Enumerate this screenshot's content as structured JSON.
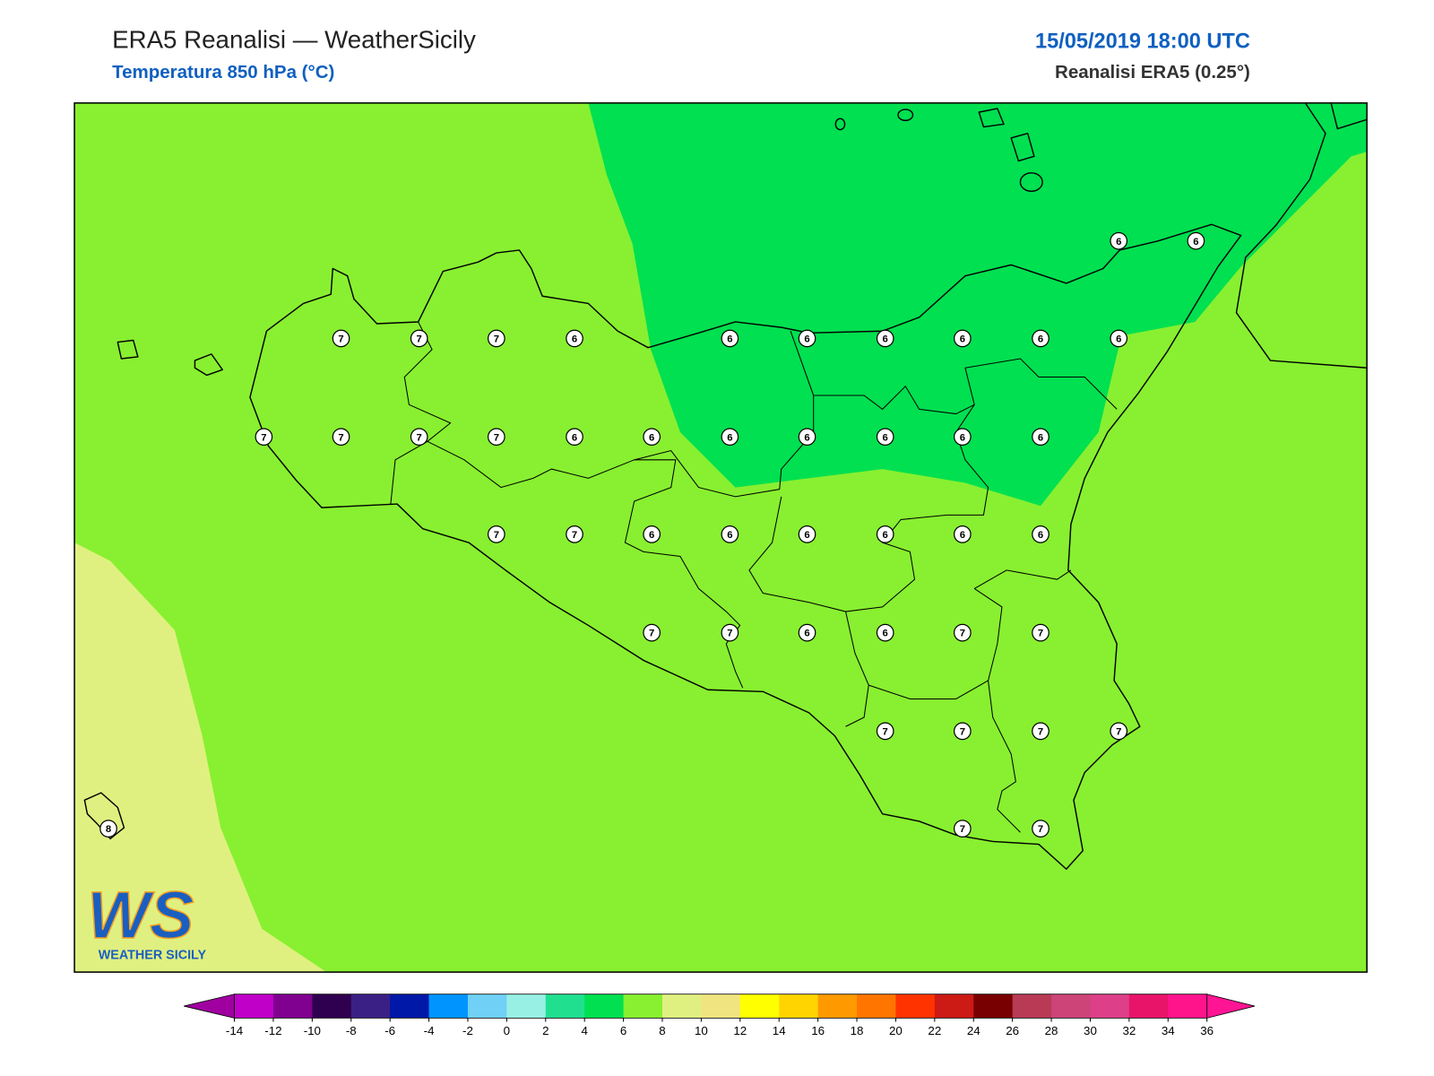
{
  "header": {
    "title": "ERA5 Reanalisi — WeatherSicily",
    "subtitle": "Temperatura 850 hPa (°C)",
    "datetime": "15/05/2019 18:00 UTC",
    "source": "Reanalisi ERA5 (0.25°)"
  },
  "stations": [
    6,
    6,
    7,
    7,
    7,
    6,
    6,
    6,
    6,
    6,
    6,
    6,
    7,
    7,
    7,
    7,
    6,
    6,
    6,
    6,
    6,
    6,
    6,
    7,
    7,
    6,
    6,
    6,
    6,
    6,
    6,
    7,
    7,
    6,
    6,
    7,
    7,
    7,
    7,
    7,
    7,
    7,
    7,
    8
  ],
  "colorbar": {
    "ticks": [
      -14,
      -12,
      -10,
      -8,
      -6,
      -4,
      -2,
      0,
      2,
      4,
      6,
      8,
      10,
      12,
      14,
      16,
      18,
      20,
      22,
      24,
      26,
      28,
      30,
      32,
      34,
      36
    ],
    "colors": [
      "#c000c8",
      "#800090",
      "#300050",
      "#3a2085",
      "#0018a8",
      "#0094ff",
      "#70d0f5",
      "#98f0e4",
      "#20e090",
      "#00e050",
      "#88f030",
      "#e0f080",
      "#f0e480",
      "#ffff00",
      "#ffd400",
      "#ff9900",
      "#ff7500",
      "#ff3300",
      "#cc1a14",
      "#780000",
      "#b83a55",
      "#cc4478",
      "#dd3f88",
      "#e8146a",
      "#ff148c"
    ],
    "under_color": "#a000a0",
    "over_color": "#ff1493"
  },
  "logo": {
    "mark": "WS",
    "text": "WEATHER SICILY"
  }
}
